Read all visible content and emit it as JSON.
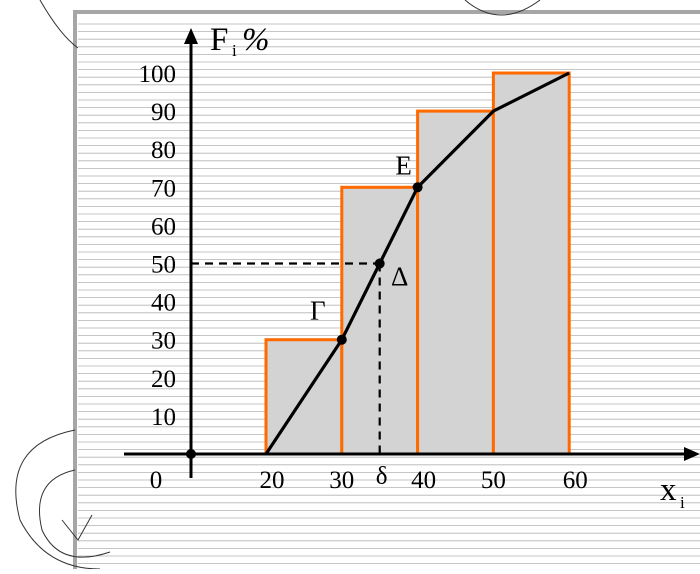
{
  "chart_data": {
    "type": "histogram-ogive",
    "title": "",
    "ylabel": {
      "main": "F",
      "sub": "i",
      "tail": "%"
    },
    "xlabel": {
      "main": "x",
      "sub": "i"
    },
    "origin_label": "0",
    "ylim": [
      0,
      100
    ],
    "xlim": [
      20,
      60
    ],
    "y_ticks": [
      10,
      20,
      30,
      40,
      50,
      60,
      70,
      80,
      90,
      100
    ],
    "y_tick_labels": [
      "10",
      "20",
      "30",
      "40",
      "50",
      "60",
      "70",
      "80",
      "90",
      "100"
    ],
    "x_ticks": [
      20,
      30,
      40,
      50,
      60
    ],
    "x_tick_labels": [
      "20",
      "30",
      "40",
      "50",
      "60"
    ],
    "bars": [
      {
        "from": 20,
        "to": 30,
        "value": 30
      },
      {
        "from": 30,
        "to": 40,
        "value": 70
      },
      {
        "from": 40,
        "to": 50,
        "value": 90
      },
      {
        "from": 50,
        "to": 60,
        "value": 100
      }
    ],
    "polyline": [
      {
        "x": 20,
        "y": 0
      },
      {
        "x": 30,
        "y": 30
      },
      {
        "x": 40,
        "y": 70
      },
      {
        "x": 50,
        "y": 90
      },
      {
        "x": 60,
        "y": 100
      }
    ],
    "points": [
      {
        "label": "Γ",
        "x": 30,
        "y": 30
      },
      {
        "label": "Δ",
        "x": 35,
        "y": 50
      },
      {
        "label": "E",
        "x": 40,
        "y": 70
      }
    ],
    "median": {
      "x": 35,
      "y": 50,
      "label": "δ"
    },
    "colors": {
      "bar_fill": "#d3d3d3",
      "bar_stroke": "#ff6a00",
      "line": "#000000",
      "grid_line": "#b3b3b3",
      "page_border": "#a6a6a6"
    }
  }
}
